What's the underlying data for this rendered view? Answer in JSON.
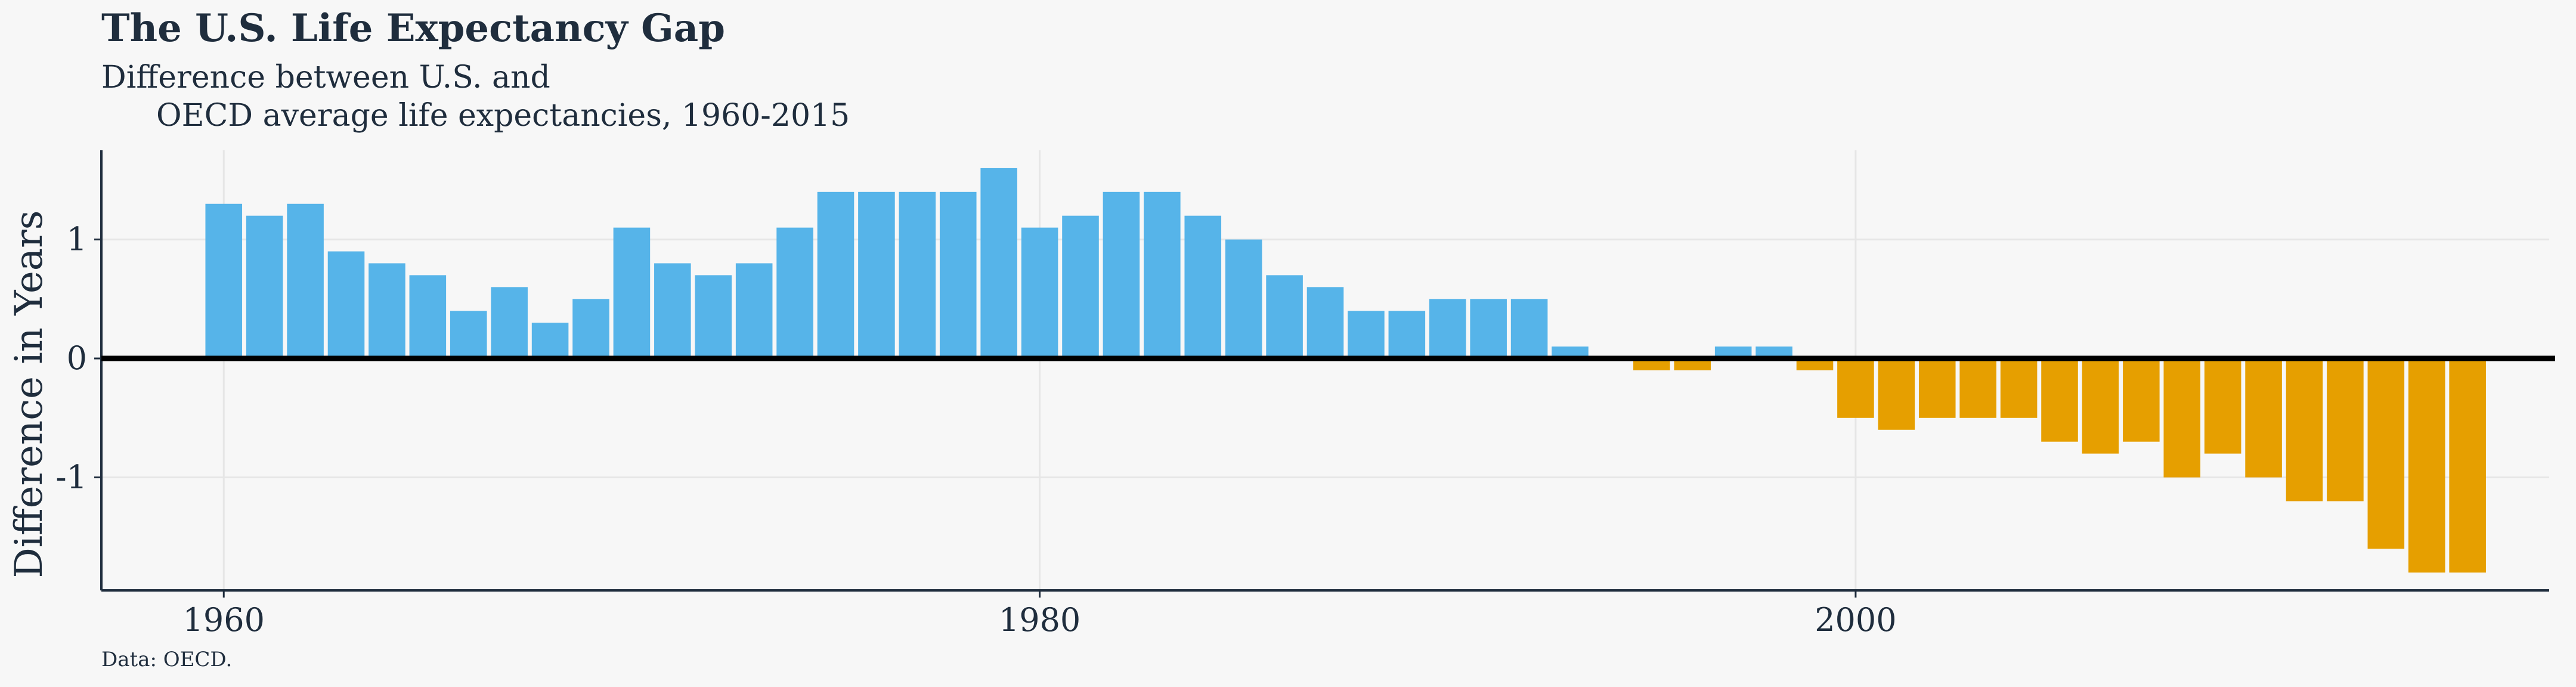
{
  "chart_data": {
    "type": "bar",
    "title": "The U.S. Life Expectancy Gap",
    "subtitle_line1": "Difference between U.S. and",
    "subtitle_line2": "OECD average life expectancies, 1960-2015",
    "xlabel": "",
    "ylabel": "Difference in Years",
    "caption": "Data: OECD.",
    "x_ticks": [
      "1960",
      "1980",
      "2000"
    ],
    "y_ticks": [
      "1",
      "0",
      "-1"
    ],
    "xlim": [
      1957,
      2017
    ],
    "ylim": [
      -1.95,
      1.75
    ],
    "grid": true,
    "colors": {
      "positive": "#56b4e9",
      "negative": "#e69f00",
      "zero_line": "#000000",
      "axis": "#1f2d3d",
      "grid": "#e6e6e6"
    },
    "x": [
      1960,
      1961,
      1962,
      1963,
      1964,
      1965,
      1966,
      1967,
      1968,
      1969,
      1970,
      1971,
      1972,
      1973,
      1974,
      1975,
      1976,
      1977,
      1978,
      1979,
      1980,
      1981,
      1982,
      1983,
      1984,
      1985,
      1986,
      1987,
      1988,
      1989,
      1990,
      1991,
      1992,
      1993,
      1994,
      1995,
      1996,
      1997,
      1998,
      1999,
      2000,
      2001,
      2002,
      2003,
      2004,
      2005,
      2006,
      2007,
      2008,
      2009,
      2010,
      2011,
      2012,
      2013,
      2014,
      2015
    ],
    "values": [
      1.3,
      1.2,
      1.3,
      0.9,
      0.8,
      0.7,
      0.4,
      0.6,
      0.3,
      0.5,
      1.1,
      0.8,
      0.7,
      0.8,
      1.1,
      1.4,
      1.4,
      1.4,
      1.4,
      1.6,
      1.1,
      1.2,
      1.4,
      1.4,
      1.2,
      1.0,
      0.7,
      0.6,
      0.4,
      0.4,
      0.5,
      0.5,
      0.5,
      0.1,
      0.0,
      -0.1,
      -0.1,
      0.1,
      0.1,
      -0.1,
      -0.5,
      -0.6,
      -0.5,
      -0.5,
      -0.5,
      -0.7,
      -0.8,
      -0.7,
      -1.0,
      -0.8,
      -1.0,
      -1.2,
      -1.2,
      -1.6,
      -1.8,
      -1.8
    ]
  }
}
